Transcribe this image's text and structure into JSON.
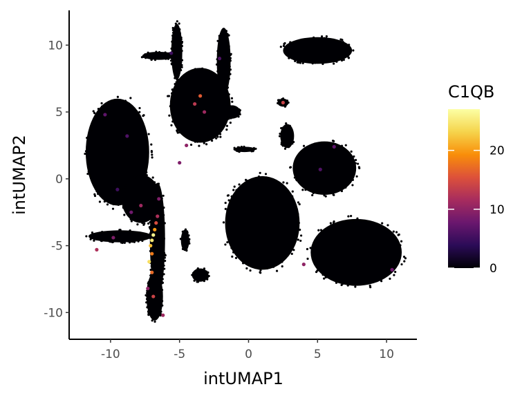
{
  "chart_data": {
    "type": "scatter",
    "title": "",
    "xlabel": "intUMAP1",
    "ylabel": "intUMAP2",
    "xlim": [
      -13,
      12.2
    ],
    "ylim": [
      -12,
      12.6
    ],
    "x_ticks": [
      -10,
      -5,
      0,
      5,
      10
    ],
    "x_tick_labels": [
      "-10",
      "-5",
      "0",
      "5",
      "10"
    ],
    "y_ticks": [
      -10,
      -5,
      0,
      5,
      10
    ],
    "y_tick_labels": [
      "-10",
      "-5",
      "0",
      "5",
      "10"
    ],
    "grid": false,
    "legend": {
      "title": "C1QB",
      "placement": "right",
      "min": 0,
      "max": 27,
      "ticks": [
        0,
        10,
        20
      ],
      "tick_labels": [
        "0",
        "10",
        "20"
      ],
      "colormap": "inferno",
      "colors": [
        "#000004",
        "#2b0b57",
        "#6a176e",
        "#a72c5e",
        "#dd513a",
        "#f98e09",
        "#f5d44c",
        "#fcffa4"
      ]
    },
    "clusters": [
      {
        "name": "left-large-lobe",
        "shape": "ellipse",
        "cx": -9.5,
        "cy": 2,
        "rx": 2.3,
        "ry": 4.0
      },
      {
        "name": "left-lobe-neck",
        "shape": "ellipse",
        "cx": -7.8,
        "cy": -1.5,
        "rx": 1.4,
        "ry": 1.8
      },
      {
        "name": "center-stem",
        "shape": "ellipse",
        "cx": -6.6,
        "cy": -4.5,
        "rx": 0.55,
        "ry": 4.2
      },
      {
        "name": "left-branch",
        "shape": "ellipse",
        "cx": -9.3,
        "cy": -4.3,
        "rx": 2.3,
        "ry": 0.45
      },
      {
        "name": "lower-tail",
        "shape": "ellipse",
        "cx": -6.8,
        "cy": -8.8,
        "rx": 0.6,
        "ry": 1.8
      },
      {
        "name": "upper-fan",
        "shape": "ellipse",
        "cx": -3.5,
        "cy": 5.5,
        "rx": 2.2,
        "ry": 2.8
      },
      {
        "name": "upper-arm-left",
        "shape": "ellipse",
        "cx": -6.5,
        "cy": 9.2,
        "rx": 1.2,
        "ry": 0.3
      },
      {
        "name": "upper-arm-mid",
        "shape": "ellipse",
        "cx": -5.2,
        "cy": 9.5,
        "rx": 0.4,
        "ry": 2.1
      },
      {
        "name": "upper-arm-right",
        "shape": "ellipse",
        "cx": -1.8,
        "cy": 8.8,
        "rx": 0.5,
        "ry": 2.5
      },
      {
        "name": "small-blob-center",
        "shape": "ellipse",
        "cx": -1.2,
        "cy": 5.0,
        "rx": 0.6,
        "ry": 0.5
      },
      {
        "name": "small-bar-center",
        "shape": "ellipse",
        "cx": -0.3,
        "cy": 2.2,
        "rx": 0.8,
        "ry": 0.2
      },
      {
        "name": "top-right-cap",
        "shape": "ellipse",
        "cx": 5.0,
        "cy": 9.6,
        "rx": 2.5,
        "ry": 1.0
      },
      {
        "name": "right-mid-cluster",
        "shape": "ellipse",
        "cx": 1.0,
        "cy": -3.3,
        "rx": 2.7,
        "ry": 3.5
      },
      {
        "name": "right-upper-band",
        "shape": "ellipse",
        "cx": 5.5,
        "cy": 0.8,
        "rx": 2.3,
        "ry": 2.0
      },
      {
        "name": "right-lower-blob",
        "shape": "ellipse",
        "cx": 7.8,
        "cy": -5.5,
        "rx": 3.3,
        "ry": 2.5
      },
      {
        "name": "small-speck-left",
        "shape": "ellipse",
        "cx": -4.6,
        "cy": -4.6,
        "rx": 0.3,
        "ry": 0.8
      },
      {
        "name": "small-speck-bottom",
        "shape": "ellipse",
        "cx": -3.5,
        "cy": -7.2,
        "rx": 0.6,
        "ry": 0.5
      },
      {
        "name": "small-speck-right",
        "shape": "ellipse",
        "cx": 2.5,
        "cy": 5.7,
        "rx": 0.4,
        "ry": 0.3
      },
      {
        "name": "small-arc-right",
        "shape": "ellipse",
        "cx": 2.8,
        "cy": 3.2,
        "rx": 0.5,
        "ry": 0.9
      }
    ],
    "highlights": [
      {
        "x": -7.0,
        "y": -4.6,
        "value": 25
      },
      {
        "x": -6.9,
        "y": -4.2,
        "value": 26
      },
      {
        "x": -7.1,
        "y": -5.0,
        "value": 22
      },
      {
        "x": -6.8,
        "y": -3.8,
        "value": 20
      },
      {
        "x": -7.0,
        "y": -5.6,
        "value": 18
      },
      {
        "x": -7.2,
        "y": -6.2,
        "value": 24
      },
      {
        "x": -6.7,
        "y": -3.3,
        "value": 15
      },
      {
        "x": -7.0,
        "y": -7.0,
        "value": 17
      },
      {
        "x": -6.6,
        "y": -2.8,
        "value": 12
      },
      {
        "x": -7.3,
        "y": -8.2,
        "value": 10
      },
      {
        "x": -6.9,
        "y": -8.8,
        "value": 14
      },
      {
        "x": -7.8,
        "y": -2.0,
        "value": 11
      },
      {
        "x": -8.5,
        "y": -2.5,
        "value": 8
      },
      {
        "x": -6.5,
        "y": -1.5,
        "value": 9
      },
      {
        "x": -3.5,
        "y": 6.2,
        "value": 16
      },
      {
        "x": -3.9,
        "y": 5.6,
        "value": 13
      },
      {
        "x": -3.2,
        "y": 5.0,
        "value": 11
      },
      {
        "x": -4.5,
        "y": 2.5,
        "value": 10
      },
      {
        "x": -5.0,
        "y": 1.2,
        "value": 9
      },
      {
        "x": -9.8,
        "y": -4.4,
        "value": 9
      },
      {
        "x": -11.0,
        "y": -5.3,
        "value": 12
      },
      {
        "x": -6.2,
        "y": -10.2,
        "value": 11
      },
      {
        "x": 2.5,
        "y": 5.7,
        "value": 14
      },
      {
        "x": 4.0,
        "y": -6.4,
        "value": 10
      },
      {
        "x": 10.4,
        "y": -6.8,
        "value": 8
      },
      {
        "x": 6.2,
        "y": 2.4,
        "value": 7
      },
      {
        "x": 5.2,
        "y": 0.7,
        "value": 6
      },
      {
        "x": -10.4,
        "y": 4.8,
        "value": 7
      },
      {
        "x": -8.8,
        "y": 3.2,
        "value": 6
      },
      {
        "x": -9.5,
        "y": -0.8,
        "value": 5
      },
      {
        "x": -2.1,
        "y": 9.0,
        "value": 6
      },
      {
        "x": -5.6,
        "y": 9.4,
        "value": 5
      }
    ]
  }
}
